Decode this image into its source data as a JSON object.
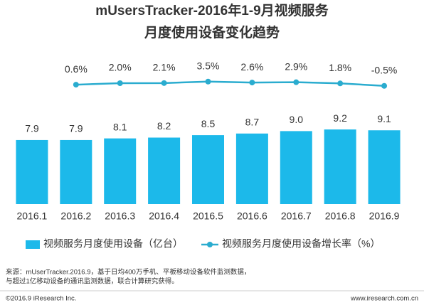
{
  "chart_data": {
    "type": "bar-line",
    "title": [
      "mUsersTracker-2016年1-9月视频服务",
      "月度使用设备变化趋势"
    ],
    "categories": [
      "2016.1",
      "2016.2",
      "2016.3",
      "2016.4",
      "2016.5",
      "2016.6",
      "2016.7",
      "2016.8",
      "2016.9"
    ],
    "series": [
      {
        "name": "视频服务月度使用设备（亿台）",
        "type": "bar",
        "color": "#1cb9ea",
        "values": [
          7.9,
          7.9,
          8.1,
          8.2,
          8.5,
          8.7,
          9.0,
          9.2,
          9.1
        ],
        "value_labels": [
          "7.9",
          "7.9",
          "8.1",
          "8.2",
          "8.5",
          "8.7",
          "9.0",
          "9.2",
          "9.1"
        ]
      },
      {
        "name": "视频服务月度使用设备增长率（%）",
        "type": "line",
        "axis": "y2",
        "color": "#2aaccf",
        "values": [
          null,
          0.6,
          2.0,
          2.1,
          3.5,
          2.6,
          2.9,
          1.8,
          -0.5
        ],
        "value_labels": [
          null,
          "0.6%",
          "2.0%",
          "2.1%",
          "3.5%",
          "2.6%",
          "2.9%",
          "1.8%",
          "-0.5%"
        ]
      }
    ],
    "ylim": [
      0,
      10
    ],
    "y2lim": [
      -40,
      40
    ],
    "source": [
      "来源：mUserTracker.2016.9，基于日均400万手机、平板移动设备软件监测数据，",
      "与超过1亿移动设备的通讯监测数据，联合计算研究获得。"
    ],
    "copyright": "©2016.9 iResearch Inc.",
    "website": "www.iresearch.com.cn"
  }
}
